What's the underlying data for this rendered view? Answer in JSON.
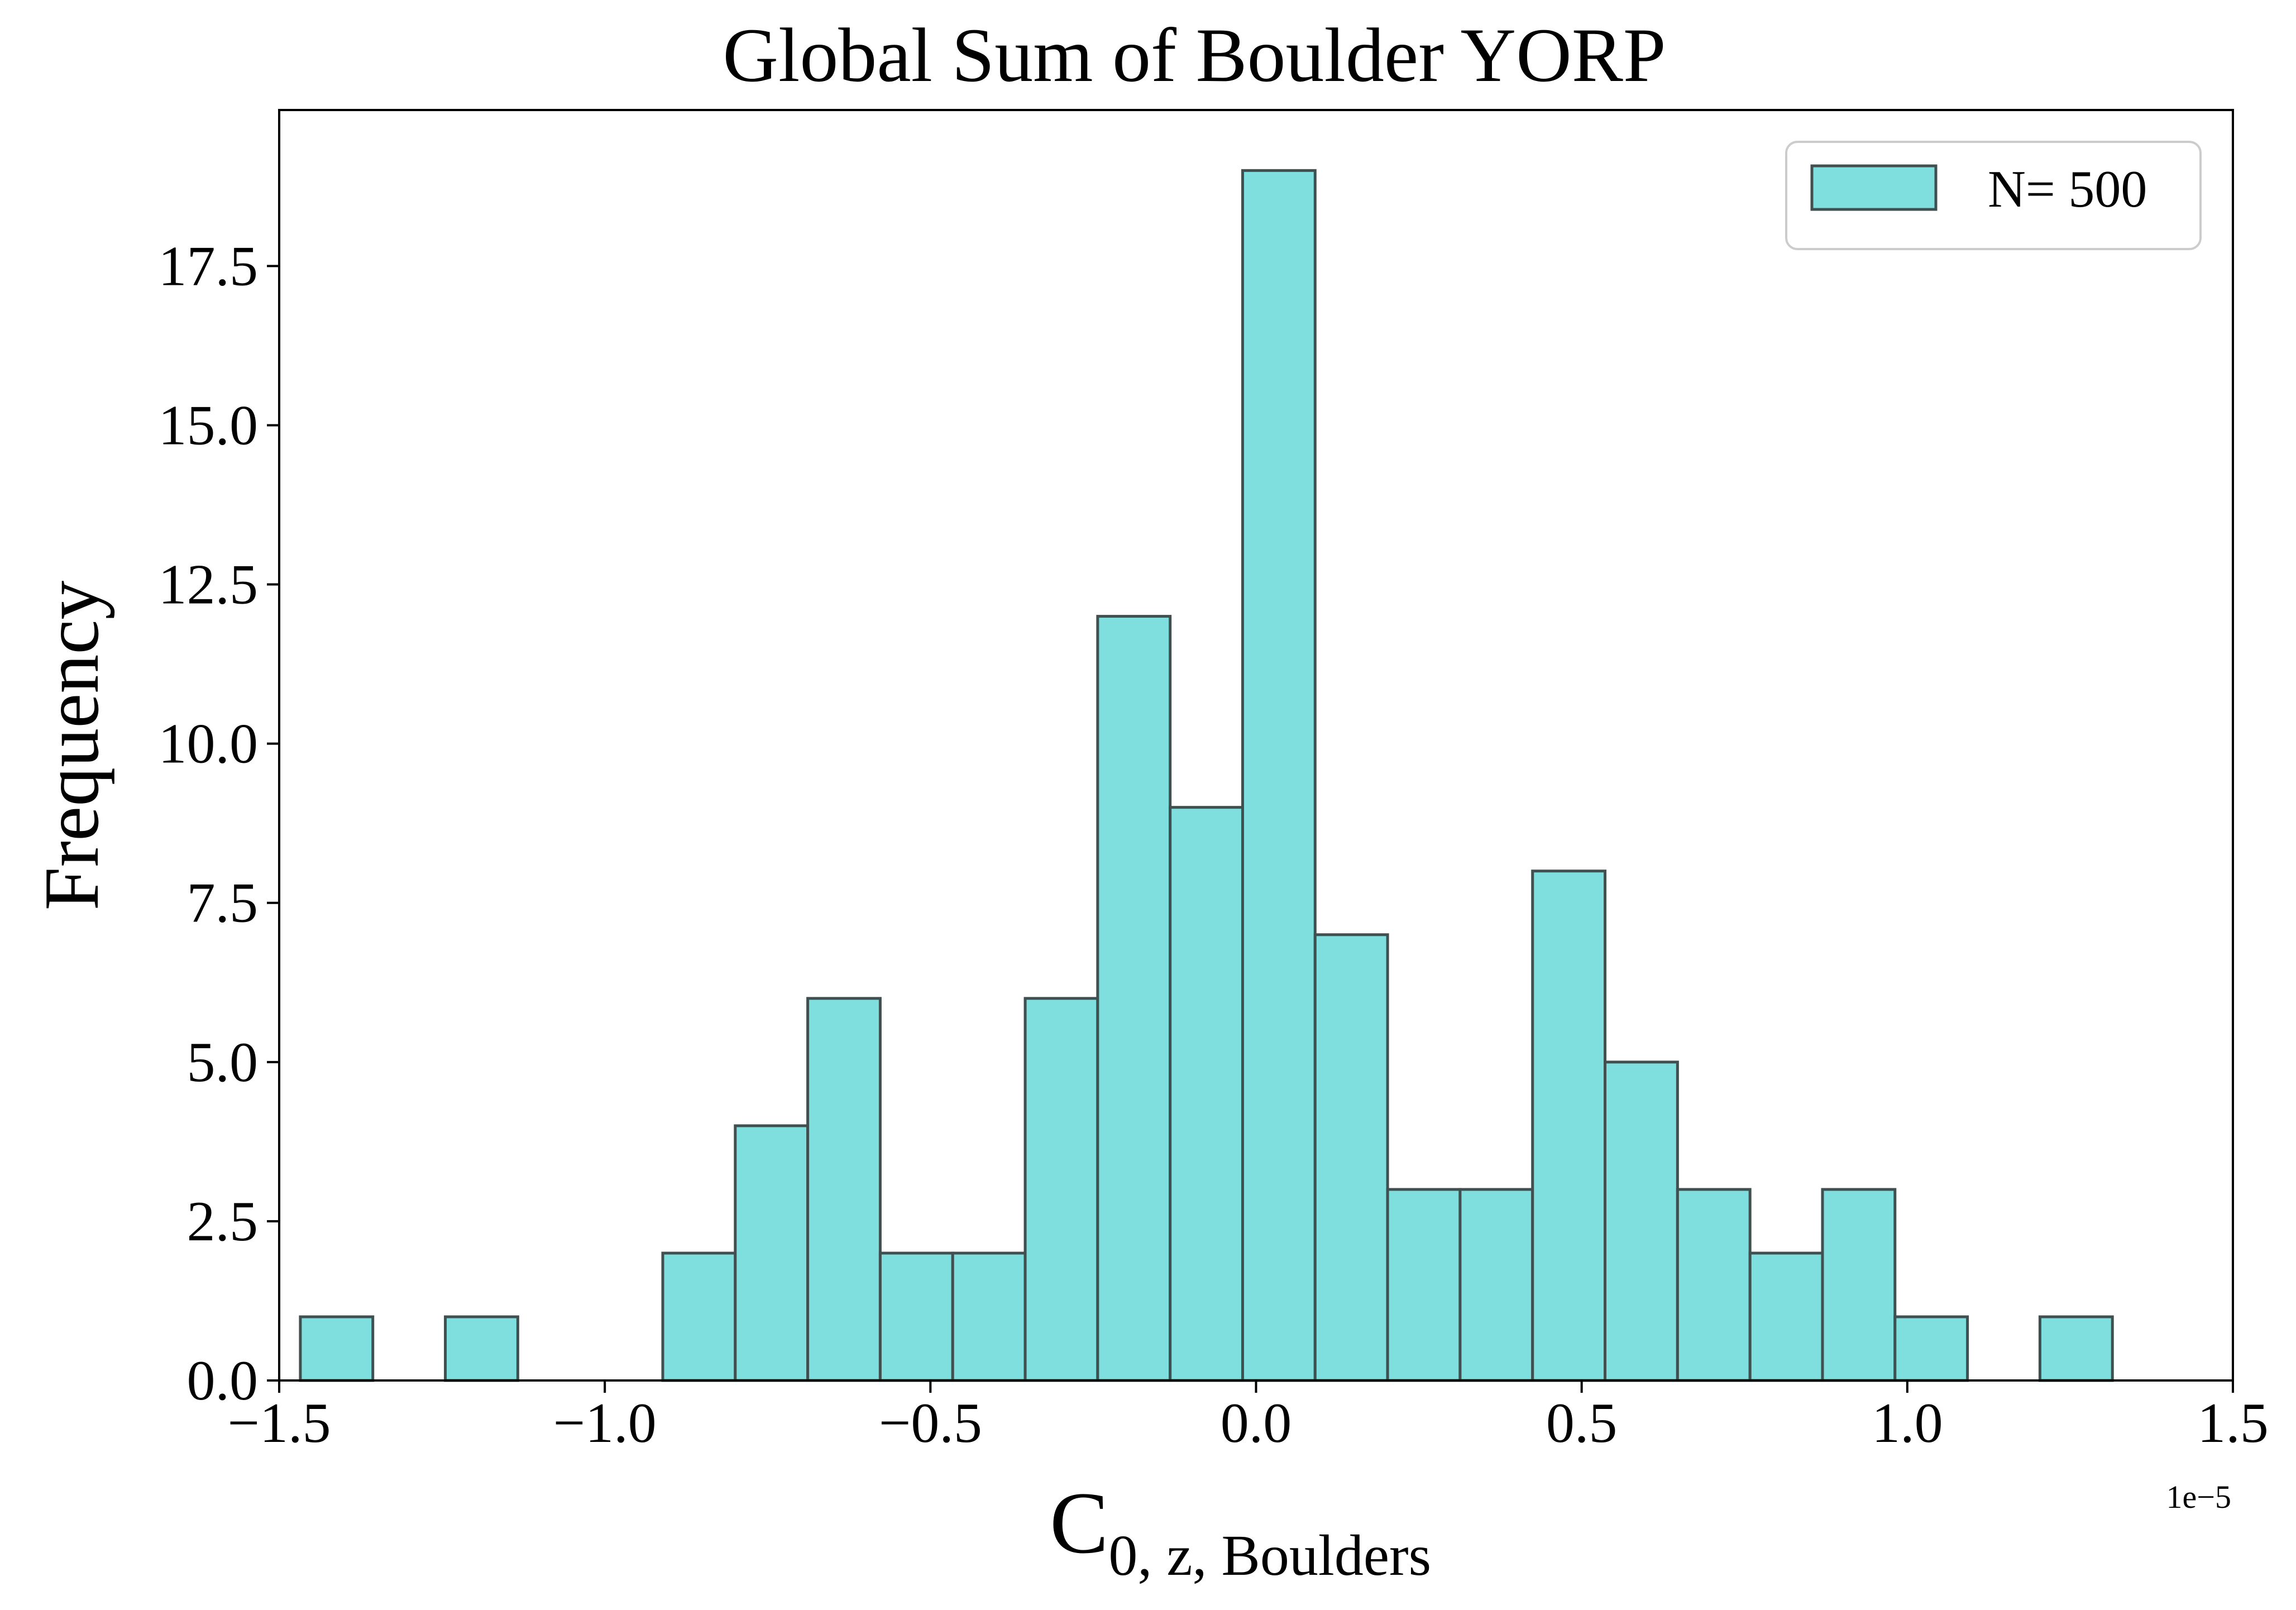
{
  "chart_data": {
    "type": "bar",
    "subtype": "histogram",
    "title": "Global Sum of Boulder YORP",
    "xlabel": {
      "main": "C",
      "subscript": "0, z, Boulders"
    },
    "ylabel": "Frequency",
    "x_offset_label": "1e−5",
    "xlim": [
      -1.5,
      1.5
    ],
    "ylim": [
      0,
      19.95
    ],
    "x_ticks": [
      -1.5,
      -1.0,
      -0.5,
      0.0,
      0.5,
      1.0,
      1.5
    ],
    "x_tick_labels": [
      "−1.5",
      "−1.0",
      "−0.5",
      "0.0",
      "0.5",
      "1.0",
      "1.5"
    ],
    "y_ticks": [
      0,
      2.5,
      5,
      7.5,
      10,
      12.5,
      15,
      17.5
    ],
    "y_tick_labels": [
      "0.0",
      "2.5",
      "5.0",
      "7.5",
      "10.0",
      "12.5",
      "15.0",
      "17.5"
    ],
    "bin_start": -1.4675,
    "bin_width": 0.1113,
    "values": [
      1,
      0,
      1,
      0,
      0,
      2,
      4,
      6,
      2,
      2,
      6,
      12,
      9,
      19,
      7,
      3,
      3,
      8,
      5,
      3,
      2,
      3,
      1,
      0,
      1
    ],
    "grid": false,
    "legend": {
      "position": "top-right",
      "entries": [
        {
          "label": "N= 500",
          "color": "#7fdfdf"
        }
      ]
    },
    "colors": {
      "bar_fill": "#7fdfdf",
      "bar_edge": "#404f4f"
    }
  }
}
